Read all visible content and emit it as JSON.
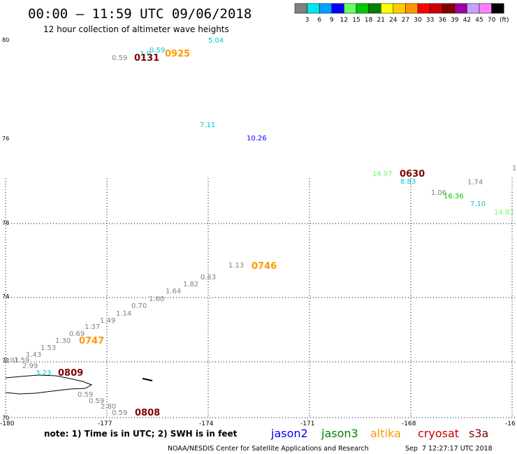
{
  "header": {
    "title": "00:00 – 11:59 UTC 09/06/2018",
    "subtitle": "12 hour collection of altimeter wave heights"
  },
  "legend": {
    "bins": [
      {
        "label": "3",
        "color": "#808080"
      },
      {
        "label": "6",
        "color": "#00e5ee"
      },
      {
        "label": "9",
        "color": "#00a0ff"
      },
      {
        "label": "12",
        "color": "#0000ff"
      },
      {
        "label": "15",
        "color": "#66ff66"
      },
      {
        "label": "18",
        "color": "#00c800"
      },
      {
        "label": "21",
        "color": "#008000"
      },
      {
        "label": "24",
        "color": "#ffff00"
      },
      {
        "label": "27",
        "color": "#ffcc00"
      },
      {
        "label": "30",
        "color": "#ff9900"
      },
      {
        "label": "33",
        "color": "#ff0000"
      },
      {
        "label": "36",
        "color": "#cc0000"
      },
      {
        "label": "39",
        "color": "#800000"
      },
      {
        "label": "42",
        "color": "#a000a0"
      },
      {
        "label": "45",
        "color": "#c8a0ff"
      },
      {
        "label": "70",
        "color": "#ff80ff"
      },
      {
        "label": "",
        "color": "#000000"
      }
    ],
    "unit": "(ft)"
  },
  "axes": {
    "x_ticks": [
      "-180",
      "-177",
      "-174",
      "-171",
      "-168",
      "-16"
    ],
    "y_ticks": [
      "80",
      "78",
      "76",
      "74",
      "72",
      "70"
    ]
  },
  "times": [
    {
      "text": "0131",
      "color": "#800000"
    },
    {
      "text": "0925",
      "color": "#ff9900"
    },
    {
      "text": "0630",
      "color": "#800000"
    },
    {
      "text": "0746",
      "color": "#ff9900"
    },
    {
      "text": "0747",
      "color": "#ff9900"
    },
    {
      "text": "0809",
      "color": "#800000"
    },
    {
      "text": "0808",
      "color": "#800000"
    }
  ],
  "swh": [
    {
      "text": "0.59",
      "color": "#808080"
    },
    {
      "text": "1.0",
      "color": "#00c8d0"
    },
    {
      "text": "0.59",
      "color": "#00c8d0"
    },
    {
      "text": "5.04",
      "color": "#00c8d0"
    },
    {
      "text": "7.11",
      "color": "#00c8d0"
    },
    {
      "text": "10.26",
      "color": "#0000ff"
    },
    {
      "text": "1",
      "color": "#808080"
    },
    {
      "text": "14.97",
      "color": "#66ff66"
    },
    {
      "text": "8.83",
      "color": "#00c8d0"
    },
    {
      "text": "1.06",
      "color": "#808080"
    },
    {
      "text": "1.74",
      "color": "#808080"
    },
    {
      "text": "16.36",
      "color": "#00c800"
    },
    {
      "text": "7.10",
      "color": "#00c8d0"
    },
    {
      "text": "14.83",
      "color": "#66ff66"
    },
    {
      "text": "1.13",
      "color": "#808080"
    },
    {
      "text": "0.63",
      "color": "#808080"
    },
    {
      "text": "1.82",
      "color": "#808080"
    },
    {
      "text": "1.64",
      "color": "#808080"
    },
    {
      "text": "1.60",
      "color": "#808080"
    },
    {
      "text": "0.70",
      "color": "#808080"
    },
    {
      "text": "1.14",
      "color": "#808080"
    },
    {
      "text": "1.49",
      "color": "#808080"
    },
    {
      "text": "1.37",
      "color": "#808080"
    },
    {
      "text": "0.69",
      "color": "#808080"
    },
    {
      "text": "1.30",
      "color": "#808080"
    },
    {
      "text": "1.53",
      "color": "#808080"
    },
    {
      "text": "1.43",
      "color": "#808080"
    },
    {
      "text": "1.59",
      "color": "#808080"
    },
    {
      "text": "2.01",
      "color": "#808080"
    },
    {
      "text": "2.99",
      "color": "#808080"
    },
    {
      "text": "3.23",
      "color": "#00c8d0"
    },
    {
      "text": "0.59",
      "color": "#808080"
    },
    {
      "text": "0.59",
      "color": "#808080"
    },
    {
      "text": "2.80",
      "color": "#808080"
    },
    {
      "text": "0.59",
      "color": "#808080"
    }
  ],
  "footer": {
    "note": "note:  1) Time is in UTC;  2) SWH is in feet",
    "satellites": [
      {
        "name": "jason2",
        "color": "#0000ff"
      },
      {
        "name": "jason3",
        "color": "#008000"
      },
      {
        "name": "altika",
        "color": "#ff9900"
      },
      {
        "name": "cryosat",
        "color": "#cc0000"
      },
      {
        "name": "s3a",
        "color": "#800000"
      }
    ],
    "credit": "NOAA/NESDIS Center for Satellite Applications and Research",
    "timestamp": "Sep  7 12:27:17 UTC 2018"
  }
}
